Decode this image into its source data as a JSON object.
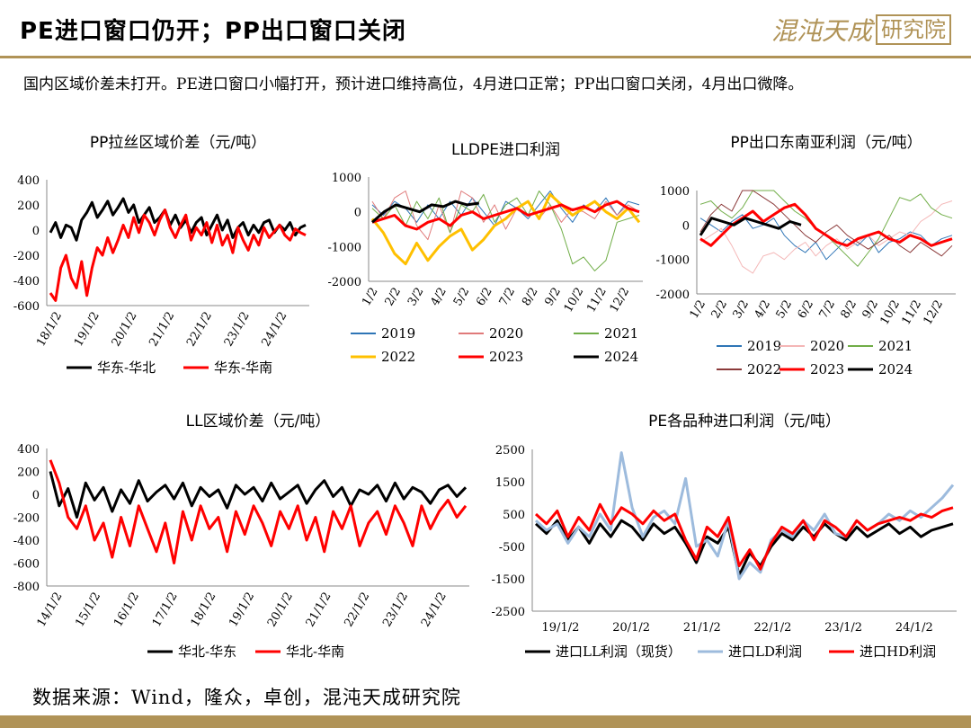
{
  "header": {
    "title": "PE进口窗口仍开；PP出口窗口关闭",
    "brand_script": "混沌天成",
    "brand_box": "研究院"
  },
  "summary": "国内区域价差未打开。PE进口窗口小幅打开，预计进口维持高位，4月进口正常；PP出口窗口关闭，4月出口微降。",
  "source": "数据来源：Wind，隆众，卓创，混沌天成研究院",
  "colors": {
    "accent": "#b09357",
    "black": "#000000",
    "red": "#ff0000"
  },
  "chart_data": [
    {
      "id": "pp_spread",
      "type": "line",
      "title": "PP拉丝区域价差（元/吨）",
      "x_ticks": [
        "18/1/2",
        "19/1/2",
        "20/1/2",
        "21/1/2",
        "22/1/2",
        "23/1/2",
        "24/1/2"
      ],
      "ylim": [
        -600,
        400
      ],
      "y_ticks": [
        400,
        200,
        0,
        -200,
        -400,
        -600
      ],
      "series": [
        {
          "name": "华东-华北",
          "color": "#000000",
          "width": 3,
          "values": [
            -20,
            60,
            -60,
            40,
            20,
            -80,
            80,
            140,
            220,
            100,
            160,
            230,
            120,
            180,
            250,
            140,
            200,
            60,
            120,
            180,
            60,
            100,
            160,
            40,
            120,
            20,
            80,
            -20,
            60,
            100,
            -40,
            40,
            120,
            0,
            80,
            -60,
            20,
            60,
            -40,
            40,
            -20,
            60,
            80,
            -20,
            40,
            0,
            60,
            -40,
            20,
            40
          ]
        },
        {
          "name": "华东-华南",
          "color": "#ff0000",
          "width": 3,
          "values": [
            -500,
            -560,
            -300,
            -200,
            -380,
            -460,
            -250,
            -520,
            -300,
            -140,
            -200,
            -60,
            -180,
            -80,
            40,
            -60,
            100,
            -20,
            120,
            60,
            -40,
            80,
            160,
            20,
            -60,
            40,
            120,
            -80,
            20,
            -40,
            60,
            -100,
            40,
            -120,
            -40,
            -180,
            20,
            -80,
            -160,
            -40,
            -120,
            20,
            -60,
            -10,
            40,
            -40,
            -80,
            10,
            -20,
            -40
          ]
        }
      ],
      "legend": "bottom"
    },
    {
      "id": "lldpe_import",
      "type": "line",
      "title": "LLDPE进口利润",
      "x_ticks": [
        "1/2",
        "2/2",
        "3/2",
        "4/2",
        "5/2",
        "6/2",
        "7/2",
        "8/2",
        "9/2",
        "10/2",
        "11/2",
        "12/2"
      ],
      "ylim": [
        -2000,
        1000
      ],
      "y_ticks": [
        1000,
        0,
        -1000,
        -2000
      ],
      "series": [
        {
          "name": "2019",
          "color": "#2e75b6",
          "width": 1,
          "values": [
            200,
            -100,
            300,
            100,
            -300,
            200,
            -200,
            300,
            -100,
            400,
            0,
            -400,
            300,
            100,
            -200,
            200,
            600,
            100,
            -300,
            200,
            0,
            400,
            -100,
            300,
            200
          ]
        },
        {
          "name": "2020",
          "color": "#e07a7a",
          "width": 1,
          "values": [
            300,
            -200,
            400,
            600,
            -400,
            -800,
            200,
            -600,
            600,
            400,
            -300,
            200,
            -500,
            100,
            300,
            -200,
            200,
            -300,
            100,
            0,
            -200,
            300,
            -100,
            200,
            0
          ]
        },
        {
          "name": "2021",
          "color": "#70ad47",
          "width": 1,
          "values": [
            100,
            -200,
            200,
            -400,
            300,
            -200,
            400,
            -600,
            200,
            0,
            500,
            -300,
            200,
            400,
            -100,
            600,
            200,
            -500,
            -1500,
            -1300,
            -1700,
            -1400,
            -300,
            -200,
            -100
          ]
        },
        {
          "name": "2022",
          "color": "#ffc000",
          "width": 3,
          "values": [
            -200,
            -600,
            -1200,
            -1500,
            -900,
            -1400,
            -1000,
            -700,
            -500,
            -1100,
            -800,
            -400,
            -200,
            100,
            300,
            -200,
            500,
            200,
            -100,
            100,
            300,
            0,
            -200,
            100,
            -300
          ]
        },
        {
          "name": "2023",
          "color": "#ff0000",
          "width": 3,
          "values": [
            -300,
            -200,
            -100,
            -400,
            -500,
            -300,
            -200,
            -400,
            -100,
            0,
            -200,
            -100,
            0,
            100,
            -100,
            0,
            100,
            200,
            50,
            150,
            0,
            200,
            300,
            100,
            0
          ]
        },
        {
          "name": "2024",
          "color": "#000000",
          "width": 3,
          "values": [
            -300,
            0,
            200,
            100,
            0,
            200,
            150,
            300,
            200,
            250
          ]
        }
      ],
      "legend": "bottom"
    },
    {
      "id": "pp_export",
      "type": "line",
      "title": "PP出口东南亚利润（元/吨）",
      "x_ticks": [
        "1/2",
        "2/2",
        "3/2",
        "4/2",
        "5/2",
        "6/2",
        "7/2",
        "8/2",
        "9/2",
        "10/2",
        "11/2",
        "12/2"
      ],
      "ylim": [
        -2000,
        1000
      ],
      "y_ticks": [
        1000,
        0,
        -1000,
        -2000
      ],
      "series": [
        {
          "name": "2019",
          "color": "#2e75b6",
          "width": 1,
          "values": [
            200,
            0,
            -200,
            100,
            300,
            -100,
            0,
            200,
            -300,
            -600,
            -800,
            -500,
            -1000,
            -700,
            -400,
            -600,
            -300,
            -800,
            -500,
            -400,
            -200,
            -300,
            -600,
            -400,
            -300
          ]
        },
        {
          "name": "2020",
          "color": "#f4b6b6",
          "width": 1,
          "values": [
            -500,
            -300,
            -100,
            -600,
            -1200,
            -1400,
            -900,
            -800,
            -1000,
            -700,
            -500,
            -900,
            -600,
            -400,
            -700,
            -500,
            -300,
            -600,
            -400,
            -200,
            -300,
            100,
            300,
            600,
            700
          ]
        },
        {
          "name": "2021",
          "color": "#70ad47",
          "width": 1,
          "values": [
            600,
            700,
            400,
            200,
            500,
            1300,
            1400,
            1100,
            700,
            400,
            200,
            -100,
            -300,
            -600,
            -900,
            -1200,
            -800,
            -400,
            200,
            800,
            700,
            900,
            500,
            300,
            200
          ]
        },
        {
          "name": "2022",
          "color": "#8b3a3a",
          "width": 1,
          "values": [
            -200,
            300,
            600,
            400,
            1000,
            1200,
            800,
            600,
            300,
            0,
            -300,
            -500,
            -200,
            0,
            -300,
            -500,
            -700,
            -500,
            -300,
            -600,
            -800,
            -500,
            -700,
            -900,
            -600
          ]
        },
        {
          "name": "2023",
          "color": "#ff0000",
          "width": 3,
          "values": [
            -400,
            -600,
            -300,
            0,
            200,
            400,
            100,
            300,
            500,
            600,
            300,
            -100,
            -300,
            -500,
            -600,
            -400,
            -300,
            -200,
            -400,
            -500,
            -300,
            -400,
            -600,
            -500,
            -400
          ]
        },
        {
          "name": "2024",
          "color": "#000000",
          "width": 3,
          "values": [
            -300,
            200,
            100,
            0,
            200,
            100,
            0,
            -100,
            100,
            0
          ]
        }
      ],
      "legend": "bottom"
    },
    {
      "id": "ll_spread",
      "type": "line",
      "title": "LL区域价差（元/吨）",
      "x_ticks": [
        "14/1/2",
        "15/1/2",
        "16/1/2",
        "17/1/2",
        "18/1/2",
        "19/1/2",
        "20/1/2",
        "21/1/2",
        "22/1/2",
        "23/1/2",
        "24/1/2"
      ],
      "ylim": [
        -800,
        400
      ],
      "y_ticks": [
        400,
        200,
        0,
        -200,
        -400,
        -600,
        -800
      ],
      "series": [
        {
          "name": "华北-华东",
          "color": "#000000",
          "width": 3,
          "values": [
            200,
            -100,
            50,
            -200,
            100,
            -50,
            60,
            -150,
            40,
            -80,
            120,
            -60,
            20,
            80,
            -40,
            100,
            -100,
            60,
            -20,
            40,
            -120,
            80,
            0,
            60,
            -60,
            100,
            -40,
            20,
            80,
            -80,
            40,
            120,
            -20,
            60,
            -100,
            40,
            0,
            80,
            -60,
            100,
            -40,
            60,
            20,
            -80,
            40,
            80,
            -20,
            60
          ]
        },
        {
          "name": "华北-华南",
          "color": "#ff0000",
          "width": 3,
          "values": [
            300,
            100,
            -200,
            -300,
            -100,
            -400,
            -250,
            -550,
            -200,
            -450,
            -100,
            -300,
            -500,
            -250,
            -600,
            -150,
            -400,
            -100,
            -300,
            -200,
            -500,
            -150,
            -350,
            -100,
            -250,
            -450,
            -150,
            -300,
            -100,
            -400,
            -200,
            -500,
            -150,
            -300,
            -100,
            -450,
            -250,
            -150,
            -350,
            -100,
            -250,
            -450,
            -100,
            -300,
            -150,
            -50,
            -200,
            -100
          ]
        }
      ],
      "legend": "bottom"
    },
    {
      "id": "pe_import",
      "type": "line",
      "title": "PE各品种进口利润（元/吨）",
      "x_ticks": [
        "19/1/2",
        "20/1/2",
        "21/1/2",
        "22/1/2",
        "23/1/2",
        "24/1/2"
      ],
      "ylim": [
        -2500,
        2500
      ],
      "y_ticks": [
        2500,
        1500,
        500,
        -500,
        -1500,
        -2500
      ],
      "series": [
        {
          "name": "进口LL利润（现货）",
          "color": "#000000",
          "width": 3,
          "values": [
            200,
            -100,
            300,
            -300,
            100,
            -400,
            200,
            -200,
            300,
            100,
            -300,
            200,
            -100,
            100,
            -400,
            -1000,
            -200,
            -400,
            100,
            -1400,
            -700,
            -1100,
            -500,
            -100,
            -300,
            100,
            -200,
            200,
            -100,
            -300,
            100,
            -200,
            0,
            200,
            -100,
            100,
            -200,
            0,
            100,
            200
          ]
        },
        {
          "name": "进口LD利润",
          "color": "#9dbbdd",
          "width": 3,
          "values": [
            300,
            0,
            200,
            -400,
            100,
            -200,
            500,
            0,
            2400,
            700,
            -200,
            400,
            600,
            200,
            1600,
            -500,
            -300,
            -800,
            300,
            -1500,
            -1000,
            -1300,
            -300,
            0,
            -200,
            300,
            0,
            500,
            -100,
            -200,
            300,
            0,
            200,
            500,
            300,
            600,
            400,
            700,
            1000,
            1400
          ]
        },
        {
          "name": "进口HD利润",
          "color": "#ff0000",
          "width": 3,
          "values": [
            500,
            200,
            600,
            -200,
            400,
            0,
            800,
            200,
            700,
            500,
            200,
            600,
            300,
            500,
            -300,
            -900,
            100,
            -200,
            400,
            -1100,
            -600,
            -1200,
            -400,
            100,
            -100,
            300,
            -300,
            300,
            100,
            -200,
            300,
            0,
            200,
            300,
            400,
            300,
            500,
            400,
            600,
            700
          ]
        }
      ],
      "legend": "bottom"
    }
  ]
}
